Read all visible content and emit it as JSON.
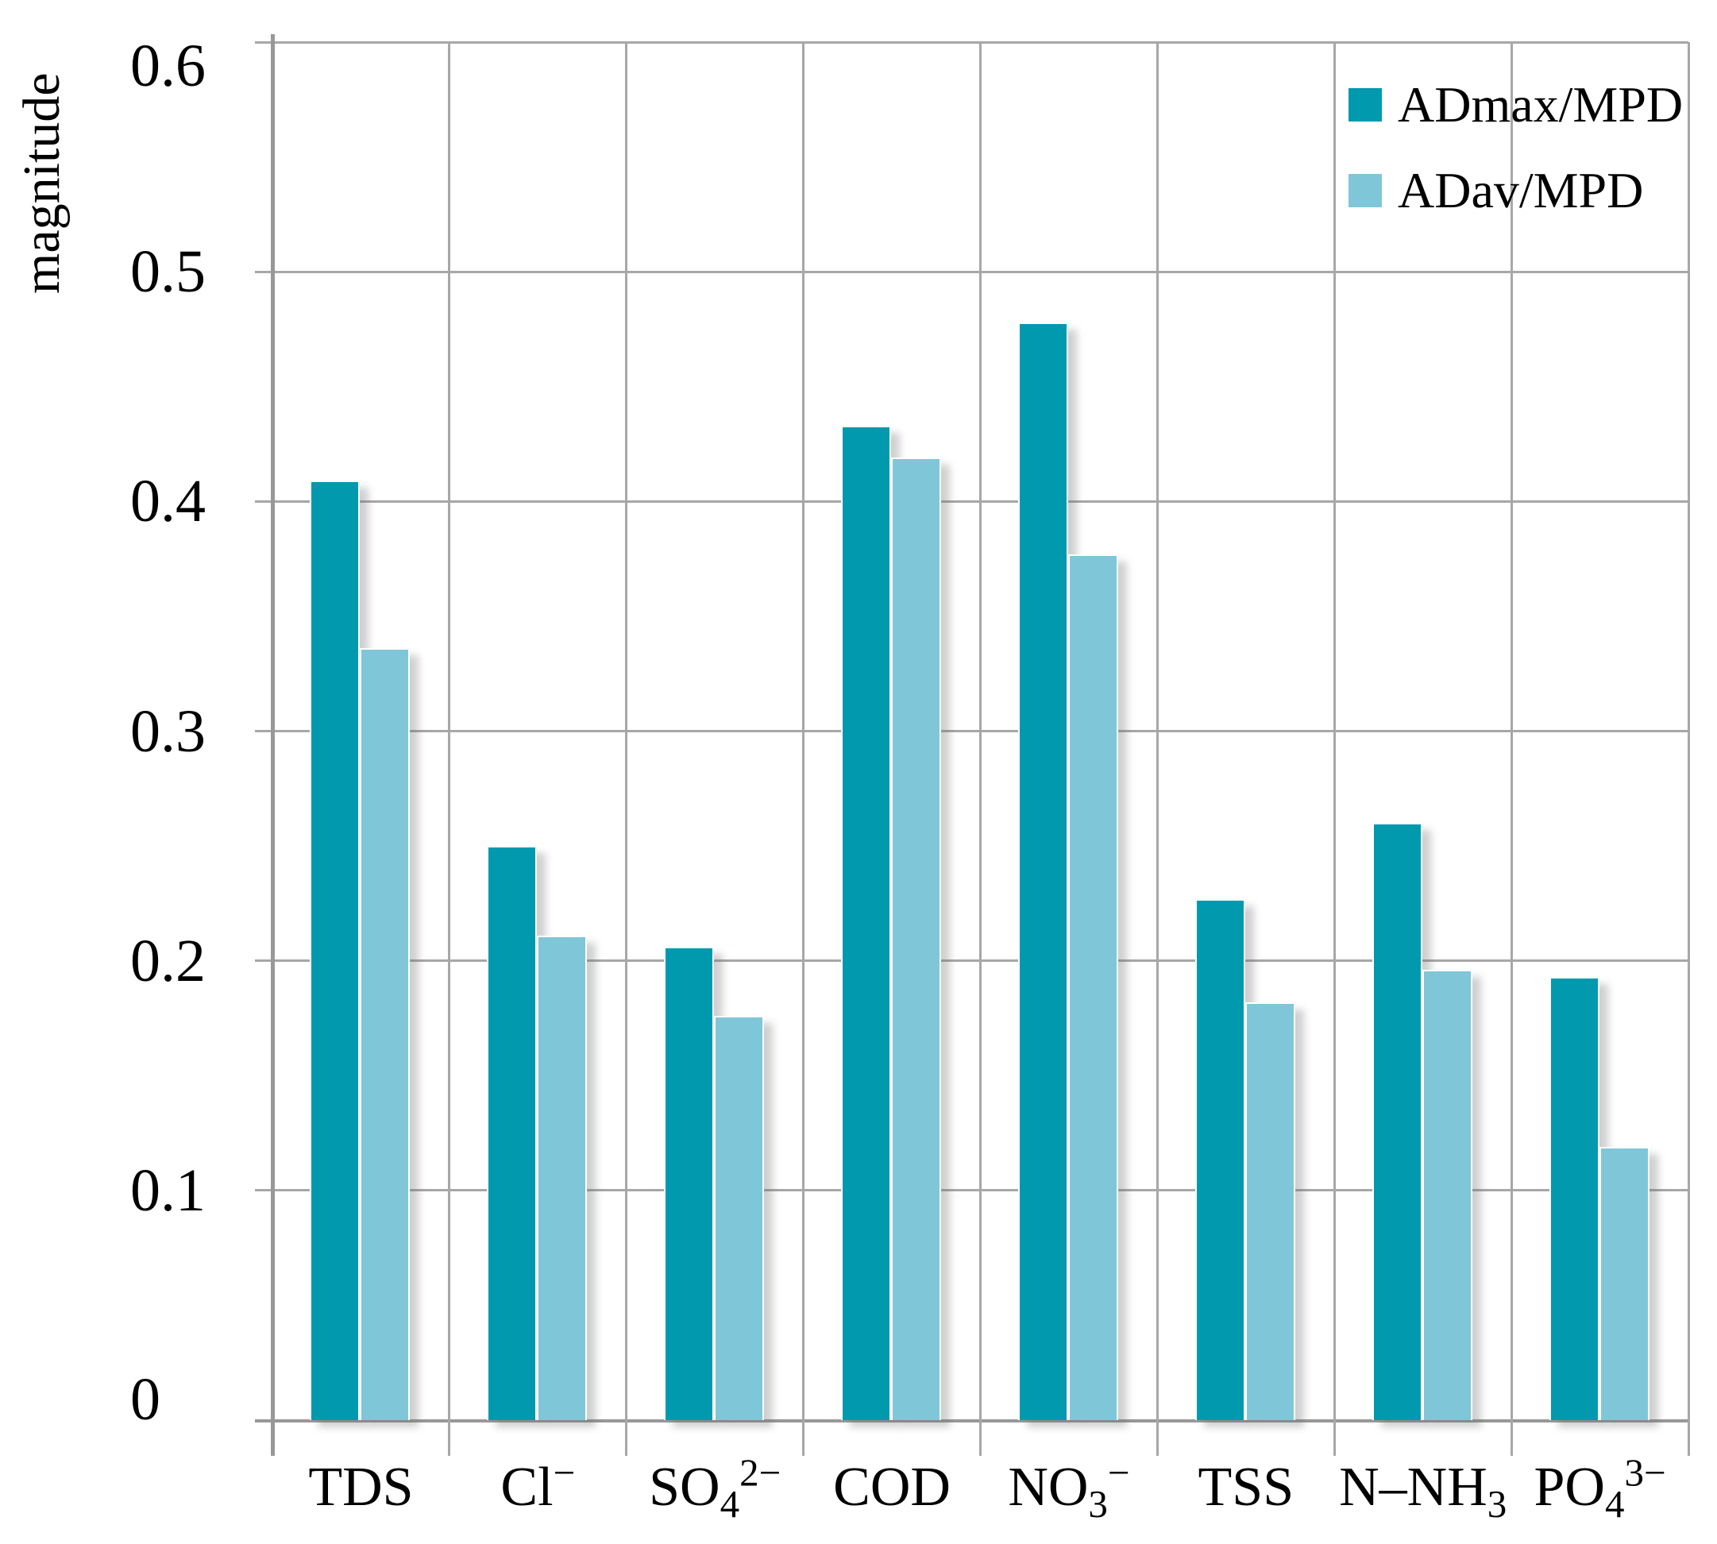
{
  "chart_data": {
    "type": "bar",
    "title": "",
    "xlabel": "",
    "ylabel": "magnitude",
    "ylim": [
      0,
      0.6
    ],
    "ytick_step": 0.1,
    "yticks": [
      "0",
      "0.1",
      "0.2",
      "0.3",
      "0.4",
      "0.5",
      "0.6"
    ],
    "grid": true,
    "legend_position": "top-right",
    "categories": [
      "TDS",
      "Cl−",
      "SO42−",
      "COD",
      "NO3−",
      "TSS",
      "N–NH3",
      "PO43−"
    ],
    "category_segments": [
      [
        {
          "t": "TDS"
        }
      ],
      [
        {
          "t": "Cl"
        },
        {
          "t": "−",
          "style": "sup"
        }
      ],
      [
        {
          "t": "SO"
        },
        {
          "t": "4",
          "style": "sub"
        },
        {
          "t": "2−",
          "style": "sup"
        }
      ],
      [
        {
          "t": "COD"
        }
      ],
      [
        {
          "t": "NO"
        },
        {
          "t": "3",
          "style": "sub"
        },
        {
          "t": "−",
          "style": "sup"
        }
      ],
      [
        {
          "t": "TSS"
        }
      ],
      [
        {
          "t": "N–NH"
        },
        {
          "t": "3",
          "style": "sub"
        }
      ],
      [
        {
          "t": "PO"
        },
        {
          "t": "4",
          "style": "sub"
        },
        {
          "t": "3−",
          "style": "sup"
        }
      ]
    ],
    "series": [
      {
        "name": "ADmax/MPD",
        "color": "#0099ae",
        "values": [
          0.409,
          0.25,
          0.206,
          0.433,
          0.478,
          0.227,
          0.26,
          0.193
        ]
      },
      {
        "name": "ADav/MPD",
        "color": "#7fc6d8",
        "values": [
          0.336,
          0.211,
          0.176,
          0.419,
          0.377,
          0.182,
          0.196,
          0.119
        ]
      }
    ],
    "colors": {
      "grid": "#a7a7a7",
      "axis": "#989898",
      "text": "#000000",
      "background": "#ffffff"
    }
  }
}
